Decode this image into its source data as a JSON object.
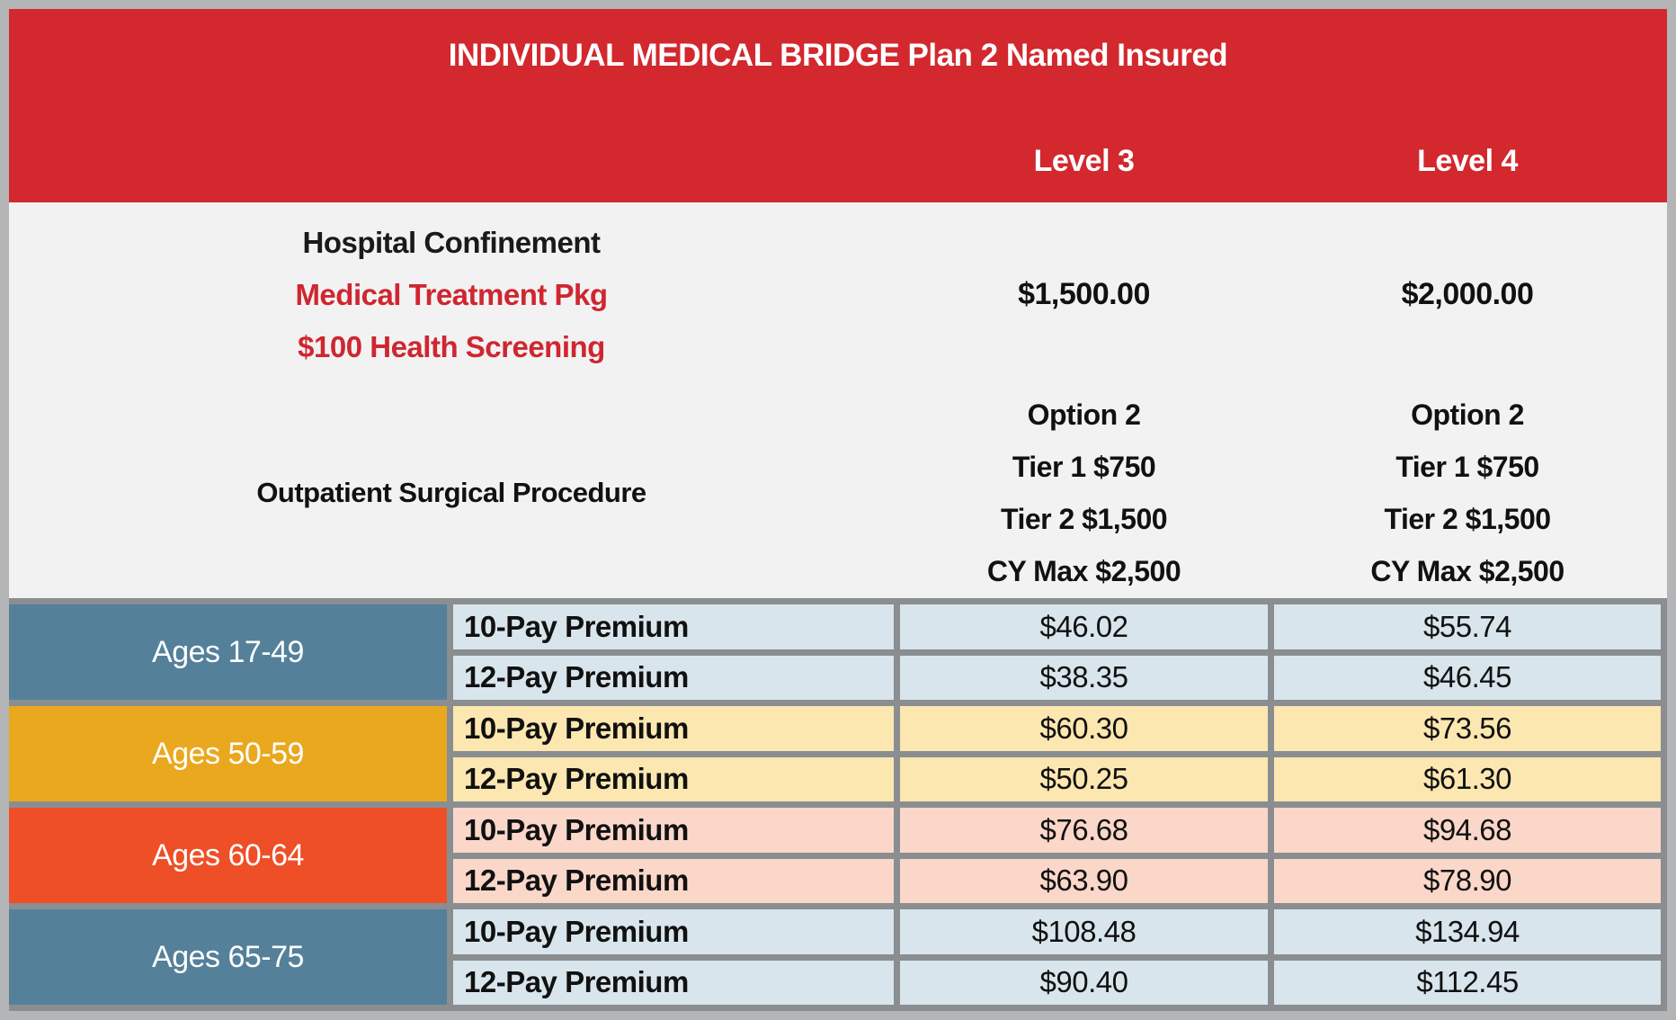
{
  "title": "INDIVIDUAL MEDICAL BRIDGE Plan 2 Named Insured",
  "level_columns": [
    "Level 3",
    "Level 4"
  ],
  "benefits": {
    "hospital": {
      "lines": [
        {
          "text": "Hospital Confinement",
          "red": false
        },
        {
          "text": "Medical Treatment Pkg",
          "red": true
        },
        {
          "text": "$100 Health Screening",
          "red": true
        }
      ],
      "values": [
        "$1,500.00",
        "$2,000.00"
      ]
    },
    "outpatient": {
      "label": "Outpatient Surgical Procedure",
      "values": [
        [
          "Option 2",
          "Tier 1 $750",
          "Tier 2 $1,500",
          "CY Max $2,500"
        ],
        [
          "Option 2",
          "Tier 1 $750",
          "Tier 2 $1,500",
          "CY Max $2,500"
        ]
      ]
    }
  },
  "age_bands": [
    {
      "label": "Ages 17-49",
      "band_color": "#54809a",
      "cell_color": "#d9e5ec",
      "rows": [
        {
          "label": "10-Pay Premium",
          "level3": "$46.02",
          "level4": "$55.74"
        },
        {
          "label": "12-Pay Premium",
          "level3": "$38.35",
          "level4": "$46.45"
        }
      ]
    },
    {
      "label": "Ages 50-59",
      "band_color": "#eaa81f",
      "cell_color": "#fde7b0",
      "rows": [
        {
          "label": "10-Pay Premium",
          "level3": "$60.30",
          "level4": "$73.56"
        },
        {
          "label": "12-Pay Premium",
          "level3": "$50.25",
          "level4": "$61.30"
        }
      ]
    },
    {
      "label": "Ages 60-64",
      "band_color": "#ee4f27",
      "cell_color": "#fbd7ca",
      "rows": [
        {
          "label": "10-Pay Premium",
          "level3": "$76.68",
          "level4": "$94.68"
        },
        {
          "label": "12-Pay Premium",
          "level3": "$63.90",
          "level4": "$78.90"
        }
      ]
    },
    {
      "label": "Ages 65-75",
      "band_color": "#54809a",
      "cell_color": "#d9e5ec",
      "rows": [
        {
          "label": "10-Pay Premium",
          "level3": "$108.48",
          "level4": "$134.94"
        },
        {
          "label": "12-Pay Premium",
          "level3": "$90.40",
          "level4": "$112.45"
        }
      ]
    }
  ],
  "colors": {
    "header_red": "#d2282e",
    "red_text": "#cf2630",
    "body_bg": "#f2f2f2",
    "grid_line": "#8a8e91",
    "outer_border": "#b3b5b6",
    "band_blue": "#54809a",
    "band_gold": "#eaa81f",
    "band_vermilion": "#ee4f27",
    "cell_light_blue": "#d9e5ec",
    "cell_light_gold": "#fde7b0",
    "cell_light_pink": "#fbd7ca"
  }
}
